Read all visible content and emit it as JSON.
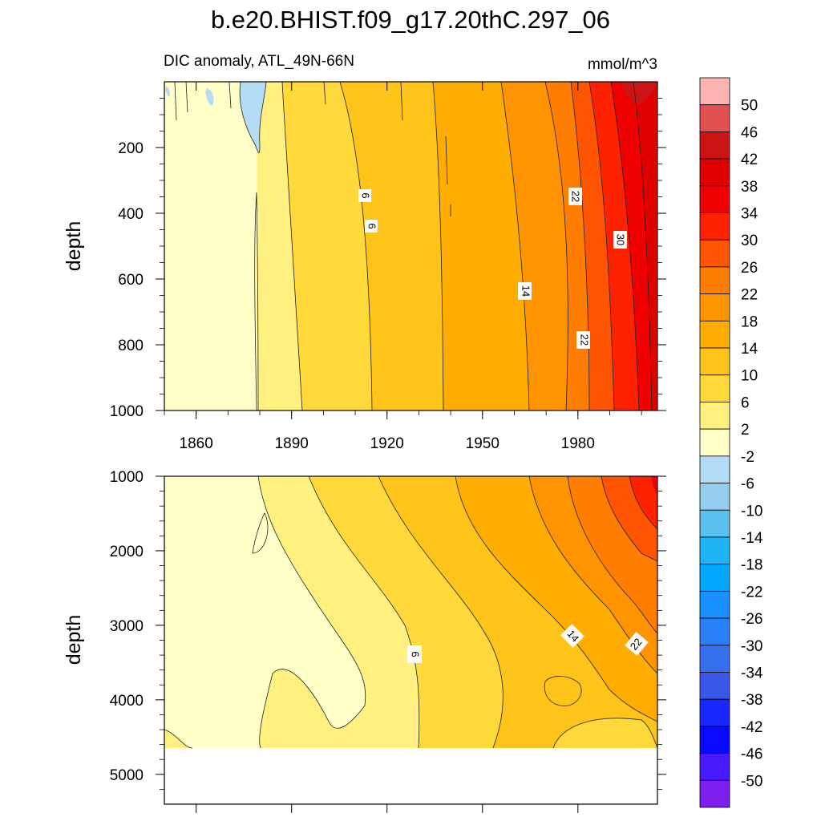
{
  "title": "b.e20.BHIST.f09_g17.20thC.297_06",
  "subtitle_left": "DIC anomaly, ATL_49N-66N",
  "subtitle_right": "mmol/m^3",
  "colorbar": {
    "levels": [
      "50",
      "46",
      "42",
      "38",
      "34",
      "30",
      "26",
      "22",
      "18",
      "14",
      "10",
      "6",
      "2",
      "-2",
      "-6",
      "-10",
      "-14",
      "-18",
      "-22",
      "-26",
      "-30",
      "-34",
      "-38",
      "-42",
      "-46",
      "-50"
    ],
    "colors": [
      "#ffb4b4",
      "#e25050",
      "#cd1414",
      "#e00000",
      "#f00000",
      "#ff2200",
      "#ff5500",
      "#ff7d00",
      "#ff9400",
      "#ffad00",
      "#ffc41a",
      "#ffd83a",
      "#fff080",
      "#ffffc8",
      "#b4dcf5",
      "#96ccee",
      "#5ac0f0",
      "#20b4f5",
      "#00a8ff",
      "#1890ff",
      "#2a80f8",
      "#3670ee",
      "#3a58e8",
      "#1a28ff",
      "#0a08ff",
      "#4a1aff",
      "#8020f0"
    ]
  },
  "chart_data": [
    {
      "type": "heatmap",
      "panel": "upper",
      "xlabel": "",
      "ylabel": "depth",
      "xlim": [
        1850,
        2005
      ],
      "ylim": [
        1000,
        0
      ],
      "x_ticks": [
        "1860",
        "1890",
        "1920",
        "1950",
        "1980"
      ],
      "y_ticks": [
        "200",
        "400",
        "600",
        "800",
        "1000"
      ],
      "contour_labels": [
        "6",
        "6",
        "22",
        "30",
        "14",
        "22"
      ],
      "boundaries_by_level": [
        {
          "level": 2,
          "x_at_surface": 1886,
          "x_at_bottom": 1880
        },
        {
          "level": 6,
          "x_at_surface": 1891,
          "x_at_bottom": 1893
        },
        {
          "level": 10,
          "x_at_surface": 1911,
          "x_at_bottom": 1917
        },
        {
          "level": 14,
          "x_at_surface": 1933,
          "x_at_bottom": 1938
        },
        {
          "level": 18,
          "x_at_surface": 1957,
          "x_at_bottom": 1964
        },
        {
          "level": 22,
          "x_at_surface": 1971,
          "x_at_bottom": 1977
        },
        {
          "level": 26,
          "x_at_surface": 1980,
          "x_at_bottom": 1983
        },
        {
          "level": 30,
          "x_at_surface": 1987,
          "x_at_bottom": 1990
        },
        {
          "level": 34,
          "x_at_surface": 1994,
          "x_at_bottom": 1997
        },
        {
          "level": 38,
          "x_at_surface": 2001,
          "x_at_bottom": 2003
        }
      ]
    },
    {
      "type": "heatmap",
      "panel": "lower",
      "xlabel": "",
      "ylabel": "depth",
      "xlim": [
        1850,
        2005
      ],
      "ylim": [
        5400,
        1000
      ],
      "y_ticks": [
        "1000",
        "2000",
        "3000",
        "4000",
        "5000"
      ],
      "data_bottom_depth": 4640,
      "contour_labels": [
        "6",
        "14",
        "22"
      ]
    }
  ]
}
